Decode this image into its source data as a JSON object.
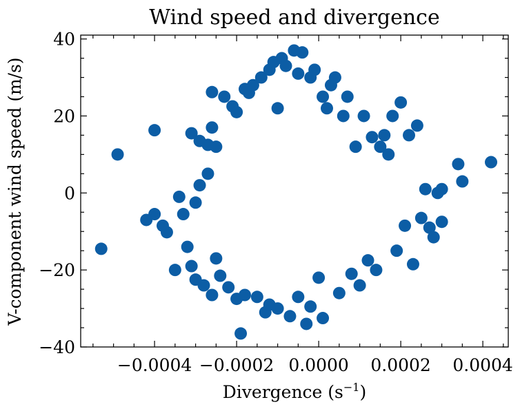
{
  "chart_data": {
    "type": "scatter",
    "title": "Wind speed and divergence",
    "xlabel_main": "Divergence (s",
    "xlabel_sup": "−1",
    "xlabel_end": ")",
    "ylabel": "V-component wind speed (m/s)",
    "xlim": [
      -0.00058,
      0.000462
    ],
    "ylim": [
      -40,
      41
    ],
    "x_ticks": [
      -0.0004,
      -0.0002,
      0.0,
      0.0002,
      0.0004
    ],
    "x_tick_labels": [
      "−0.0004",
      "−0.0002",
      "0.0000",
      "0.0002",
      "0.0004"
    ],
    "y_ticks": [
      -40,
      -20,
      0,
      20,
      40
    ],
    "y_tick_labels": [
      "−40",
      "−20",
      "0",
      "20",
      "40"
    ],
    "grid": false,
    "point_color": "#0C5DA5",
    "series": [
      {
        "x": [
          -0.00053,
          -0.00049,
          -0.0004,
          -0.00042,
          -0.0004,
          -0.00038,
          -0.00037,
          -0.00035,
          -0.00034,
          -0.00033,
          -0.00032,
          -0.00031,
          -0.00031,
          -0.0003,
          -0.0003,
          -0.00029,
          -0.00029,
          -0.00028,
          -0.00027,
          -0.00027,
          -0.00026,
          -0.00026,
          -0.00026,
          -0.00025,
          -0.00025,
          -0.00024,
          -0.00023,
          -0.00022,
          -0.00021,
          -0.0002,
          -0.0002,
          -0.00019,
          -0.00018,
          -0.00018,
          -0.00017,
          -0.00016,
          -0.00015,
          -0.00014,
          -0.00013,
          -0.00012,
          -0.00012,
          -0.00011,
          -0.0001,
          -0.0001,
          -9e-05,
          -8e-05,
          -7e-05,
          -6e-05,
          -5e-05,
          -5e-05,
          -4e-05,
          -3e-05,
          -2e-05,
          -2e-05,
          -1e-05,
          0.0,
          1e-05,
          1e-05,
          2e-05,
          3e-05,
          4e-05,
          5e-05,
          6e-05,
          7e-05,
          8e-05,
          9e-05,
          0.0001,
          0.00011,
          0.00012,
          0.00013,
          0.00014,
          0.00015,
          0.00016,
          0.00017,
          0.00018,
          0.00019,
          0.0002,
          0.00021,
          0.00022,
          0.00023,
          0.00024,
          0.00025,
          0.00026,
          0.00027,
          0.00028,
          0.00029,
          0.0003,
          0.0003,
          0.00034,
          0.00035,
          0.00042
        ],
        "y": [
          -14.5,
          10,
          16.3,
          -7,
          -5.5,
          -8.5,
          -10.2,
          -20,
          -1,
          -5.5,
          -14,
          -19,
          15.5,
          -22.5,
          -2.5,
          13.5,
          2,
          -24,
          5,
          12.5,
          26.2,
          17,
          -26.5,
          -17,
          12,
          -21.5,
          25,
          -24.5,
          22.5,
          -27.5,
          21,
          -36.5,
          27,
          -26.5,
          26,
          28,
          -27,
          30,
          -31,
          32,
          -29,
          34,
          22,
          -30,
          35,
          33,
          -32,
          37,
          -27,
          31,
          36.5,
          -34,
          30,
          -29.5,
          32,
          -22,
          25,
          -32.5,
          22,
          28,
          30,
          -26,
          20,
          25,
          -21,
          12,
          -24,
          20,
          -17.5,
          14.5,
          -20,
          12,
          15,
          10,
          20,
          -15,
          23.5,
          -8.5,
          15,
          -18.5,
          17.5,
          -6.5,
          1,
          -9,
          -11.5,
          0,
          1,
          -7.5,
          7.5,
          3,
          8
        ]
      }
    ]
  }
}
